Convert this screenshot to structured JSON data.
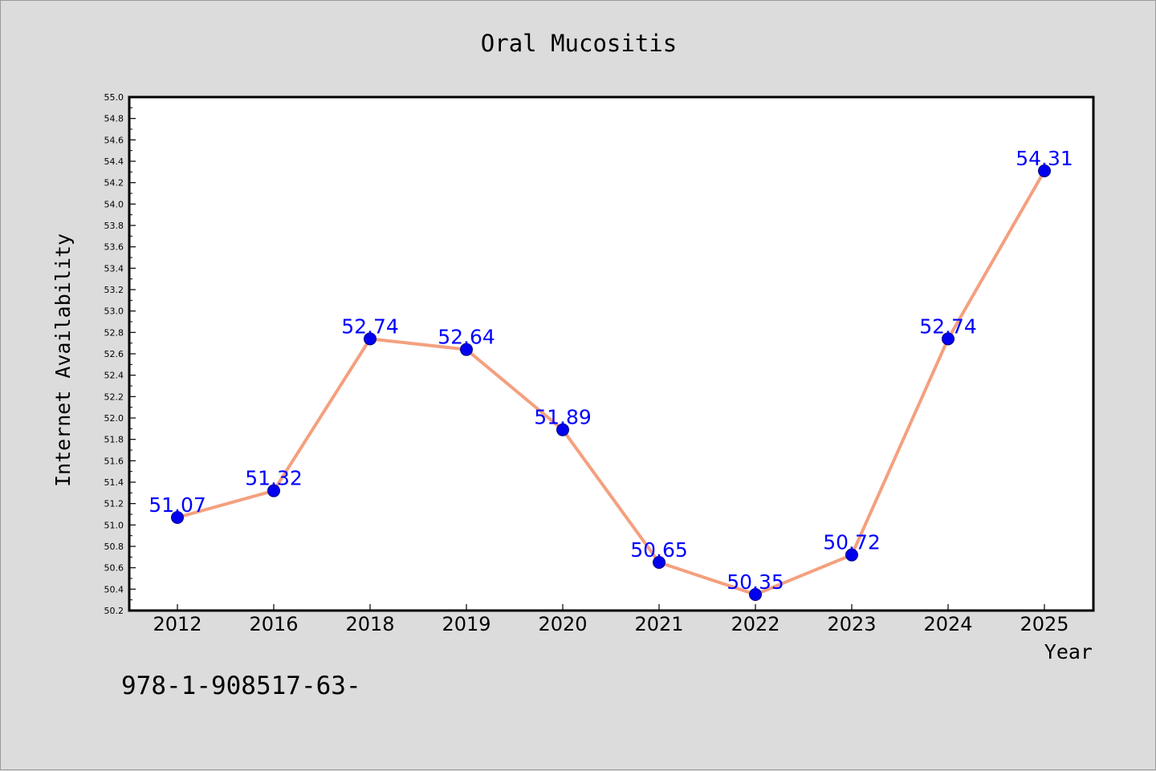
{
  "chart_data": {
    "type": "line",
    "title": "Oral Mucositis",
    "xlabel": "Year",
    "ylabel": "Internet Availability",
    "categories": [
      "2012",
      "2016",
      "2018",
      "2019",
      "2020",
      "2021",
      "2022",
      "2023",
      "2024",
      "2025"
    ],
    "series": [
      {
        "values": [
          51.07,
          51.32,
          52.74,
          52.64,
          51.89,
          50.65,
          50.35,
          50.72,
          52.74,
          54.31
        ],
        "labels": [
          "51.07",
          "51.32",
          "52.74",
          "52.64",
          "51.89",
          "50.65",
          "50.35",
          "50.72",
          "52.74",
          "54.31"
        ]
      }
    ],
    "ylim": [
      50.2,
      55.0
    ],
    "yticks": [
      "50.2",
      "50.4",
      "50.6",
      "50.8",
      "51.0",
      "51.2",
      "51.4",
      "51.6",
      "51.8",
      "52.0",
      "52.2",
      "52.4",
      "52.6",
      "52.8",
      "53.0",
      "53.2",
      "53.4",
      "53.6",
      "53.8",
      "54.0",
      "54.2",
      "54.4",
      "54.6",
      "54.8",
      "55.0"
    ],
    "grid": false,
    "legend": "none",
    "colors": {
      "line": "#f4a07f",
      "marker": "#0000ee",
      "data_label": "#0000ff",
      "background": "#dcdcdc",
      "plot_background": "#ffffff"
    }
  },
  "footnote": "978-1-908517-63-"
}
